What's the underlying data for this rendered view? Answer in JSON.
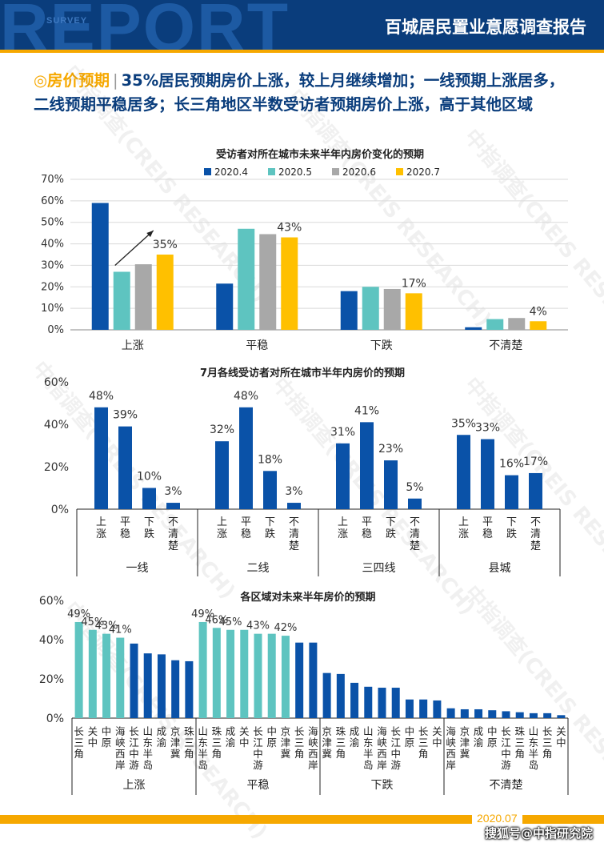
{
  "header": {
    "watermark": "REPORT",
    "watermark_small": "SURVEY",
    "title": "百城居民置业意愿调查报告"
  },
  "headline": {
    "icon": "◎",
    "tag": "房价预期",
    "separator": "|",
    "text": "35%居民预期房价上涨，较上月继续增加；一线预期上涨居多，二线预期平稳居多；长三角地区半数受访者预期房价上涨，高于其他区域"
  },
  "watermark_text": "中指调查(CREIS RESEARCH)",
  "colors": {
    "dark_blue": "#0a52a8",
    "teal": "#5ec4c0",
    "gray": "#a8a8a8",
    "yellow": "#ffc000",
    "accent": "#f6a800",
    "navy": "#0a3d7c"
  },
  "chart_data": [
    {
      "type": "bar",
      "title": "受访者对所在城市未来半年内房价变化的预期",
      "categories": [
        "上涨",
        "平稳",
        "下跌",
        "不清楚"
      ],
      "ylim": [
        0,
        70
      ],
      "yticks": [
        "0%",
        "10%",
        "20%",
        "30%",
        "40%",
        "50%",
        "60%",
        "70%"
      ],
      "legend_position": "top",
      "grid": true,
      "series": [
        {
          "name": "2020.4",
          "color": "#0a52a8",
          "values": [
            59,
            21.5,
            18,
            1.2
          ]
        },
        {
          "name": "2020.5",
          "color": "#5ec4c0",
          "values": [
            27,
            47,
            20,
            5
          ]
        },
        {
          "name": "2020.6",
          "color": "#a8a8a8",
          "values": [
            30.5,
            44.5,
            19,
            5.5
          ]
        },
        {
          "name": "2020.7",
          "color": "#ffc000",
          "values": [
            35,
            43,
            17,
            4
          ]
        }
      ],
      "data_labels": [
        "35%",
        "43%",
        "17%",
        "4%"
      ]
    },
    {
      "type": "bar",
      "title": "7月各线受访者对所在城市半年内房价的预期",
      "ylim": [
        0,
        60
      ],
      "yticks": [
        "0%",
        "20%",
        "40%",
        "60%"
      ],
      "grid": false,
      "groups": [
        {
          "name": "一线",
          "categories": [
            "上涨",
            "平稳",
            "下跌",
            "不清楚"
          ],
          "values": [
            48,
            39,
            10,
            3
          ],
          "labels": [
            "48%",
            "39%",
            "10%",
            "3%"
          ]
        },
        {
          "name": "二线",
          "categories": [
            "上涨",
            "平稳",
            "下跌",
            "不清楚"
          ],
          "values": [
            32,
            48,
            18,
            3
          ],
          "labels": [
            "32%",
            "48%",
            "18%",
            "3%"
          ]
        },
        {
          "name": "三四线",
          "categories": [
            "上涨",
            "平稳",
            "下跌",
            "不清楚"
          ],
          "values": [
            31,
            41,
            23,
            5
          ],
          "labels": [
            "31%",
            "41%",
            "23%",
            "5%"
          ]
        },
        {
          "name": "县城",
          "categories": [
            "上涨",
            "平稳",
            "下跌",
            "不清楚"
          ],
          "values": [
            35,
            33,
            16,
            17
          ],
          "labels": [
            "35%",
            "33%",
            "16%",
            "17%"
          ]
        }
      ]
    },
    {
      "type": "bar",
      "title": "各区域对未来半年房价的预期",
      "ylim": [
        0,
        60
      ],
      "yticks": [
        "0%",
        "20%",
        "40%",
        "60%"
      ],
      "grid": false,
      "groups": [
        {
          "name": "上涨",
          "categories": [
            "长三角",
            "关中",
            "中原",
            "海峡西岸",
            "长江中游",
            "山东半岛",
            "成渝",
            "京津冀",
            "珠三角"
          ],
          "values": [
            49,
            45,
            43,
            41,
            38,
            33,
            32.5,
            29.5,
            29
          ],
          "highlight": [
            true,
            true,
            true,
            true,
            false,
            false,
            false,
            false,
            false
          ],
          "labels": [
            "49%",
            "45%",
            "43%",
            "41%",
            "",
            "",
            "",
            "",
            ""
          ]
        },
        {
          "name": "平稳",
          "categories": [
            "山东半岛",
            "珠三角",
            "成渝",
            "关中",
            "长江中游",
            "中原",
            "京津冀",
            "长三角",
            "海峡西岸"
          ],
          "values": [
            49,
            46,
            45,
            45,
            43,
            43,
            42,
            38.5,
            38.5
          ],
          "highlight": [
            true,
            true,
            true,
            true,
            true,
            true,
            true,
            false,
            false
          ],
          "labels": [
            "49%",
            "46%",
            "45%",
            "",
            "43%",
            "",
            "42%",
            "",
            ""
          ]
        },
        {
          "name": "下跌",
          "categories": [
            "京津冀",
            "珠三角",
            "成渝",
            "山东半岛",
            "海峡西岸",
            "长江中游",
            "中原",
            "长三角",
            "关中"
          ],
          "values": [
            23,
            22.5,
            18,
            16,
            15.5,
            15.5,
            9.5,
            9.5,
            9
          ],
          "highlight": [
            false,
            false,
            false,
            false,
            false,
            false,
            false,
            false,
            false
          ],
          "labels": [
            "",
            "",
            "",
            "",
            "",
            "",
            "",
            "",
            ""
          ]
        },
        {
          "name": "不清楚",
          "categories": [
            "海峡西岸",
            "京津冀",
            "成渝",
            "中原",
            "长江中游",
            "珠三角",
            "山东半岛",
            "长三角",
            "关中"
          ],
          "values": [
            5,
            4.5,
            4.5,
            4,
            3.5,
            3,
            2.5,
            2.5,
            1.5
          ],
          "highlight": [
            false,
            false,
            false,
            false,
            false,
            false,
            false,
            false,
            false
          ],
          "labels": [
            "",
            "",
            "",
            "",
            "",
            "",
            "",
            "",
            ""
          ]
        }
      ]
    }
  ],
  "footer": {
    "date": "2020.07",
    "source": "搜狐号@中指研究院"
  }
}
